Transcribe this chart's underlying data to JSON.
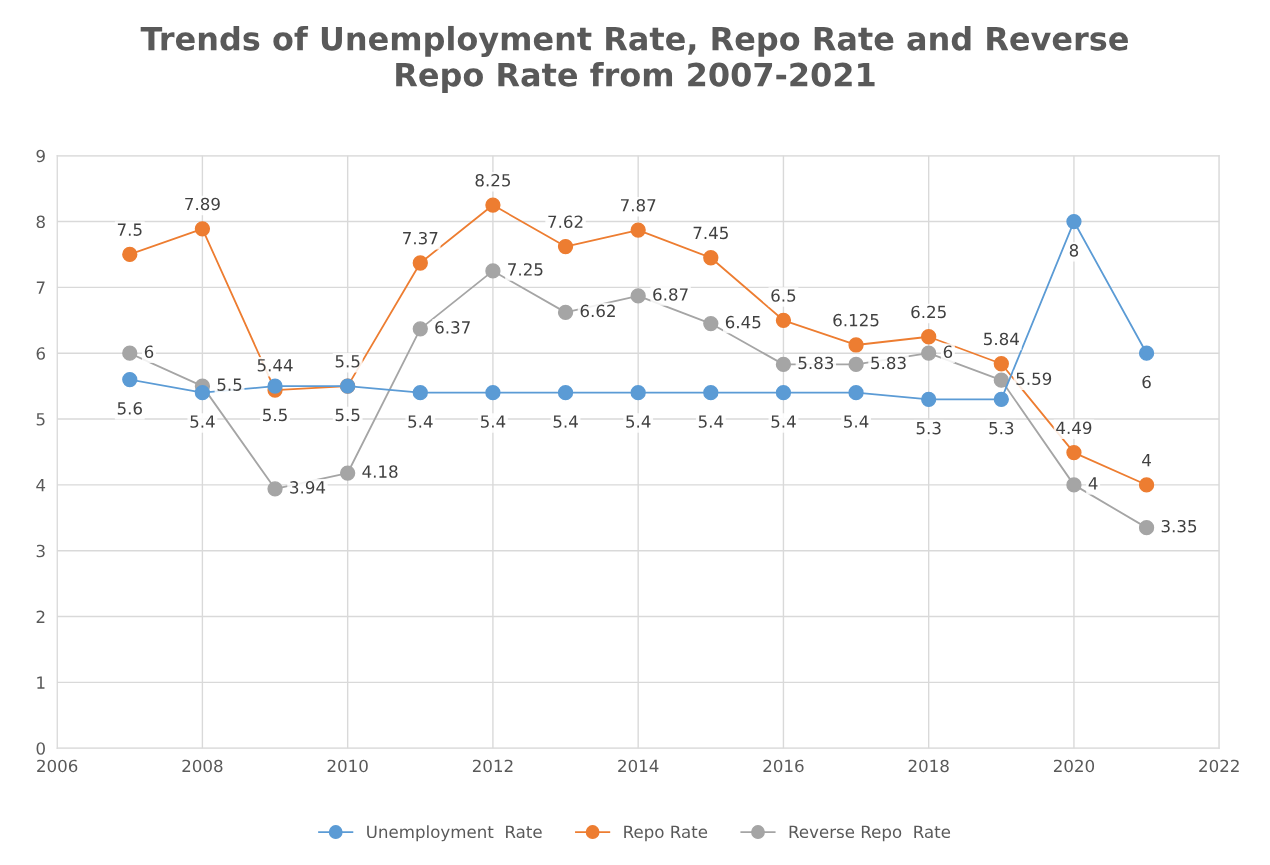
{
  "chart_data": {
    "type": "line",
    "title": "Trends of Unemployment Rate, Repo Rate and Reverse\nRepo Rate from 2007-2021",
    "x": [
      2007,
      2008,
      2009,
      2010,
      2011,
      2012,
      2013,
      2014,
      2015,
      2016,
      2017,
      2018,
      2019,
      2020,
      2021
    ],
    "series": [
      {
        "name": "Unemployment  Rate",
        "color": "#5b9bd5",
        "values": [
          5.6,
          5.4,
          5.5,
          5.5,
          5.4,
          5.4,
          5.4,
          5.4,
          5.4,
          5.4,
          5.4,
          5.3,
          5.3,
          8,
          6
        ]
      },
      {
        "name": "Repo Rate",
        "color": "#ed7d31",
        "values": [
          7.5,
          7.89,
          5.44,
          5.5,
          7.37,
          8.25,
          7.62,
          7.87,
          7.45,
          6.5,
          6.125,
          6.25,
          5.84,
          4.49,
          4
        ]
      },
      {
        "name": "Reverse Repo  Rate",
        "color": "#a5a5a5",
        "values": [
          6,
          5.5,
          3.94,
          4.18,
          6.37,
          7.25,
          6.62,
          6.87,
          6.45,
          5.83,
          5.83,
          6,
          5.59,
          4,
          3.35
        ]
      }
    ],
    "xlim": [
      2006,
      2022
    ],
    "xticks": [
      2006,
      2008,
      2010,
      2012,
      2014,
      2016,
      2018,
      2020,
      2022
    ],
    "ylim": [
      0,
      9
    ],
    "yticks": [
      0,
      1,
      2,
      3,
      4,
      5,
      6,
      7,
      8,
      9
    ],
    "grid": true,
    "legend": "bottom",
    "marker": "circle",
    "data_labels": true
  }
}
